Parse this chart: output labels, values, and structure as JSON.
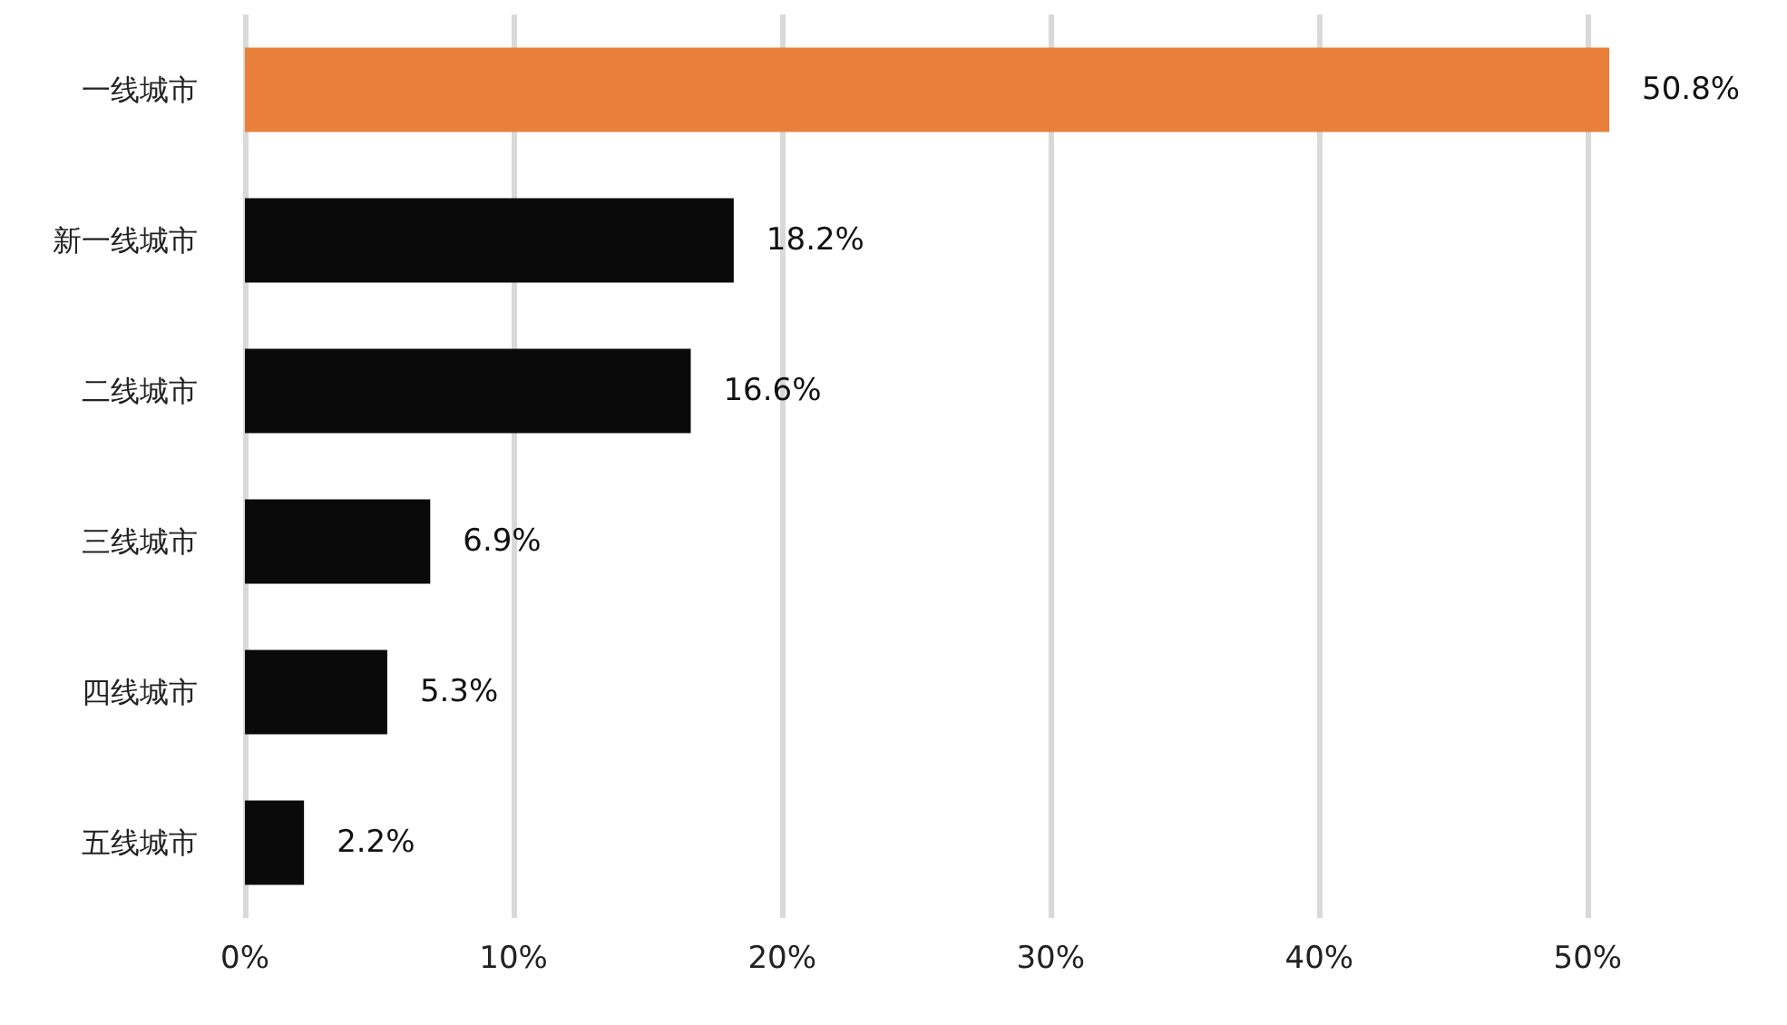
{
  "chart_data": {
    "type": "bar",
    "orientation": "horizontal",
    "categories": [
      "一线城市",
      "新一线城市",
      "二线城市",
      "三线城市",
      "四线城市",
      "五线城市"
    ],
    "values": [
      50.8,
      18.2,
      16.6,
      6.9,
      5.3,
      2.2
    ],
    "colors": [
      "#e8803a",
      "#0a0a0a",
      "#0a0a0a",
      "#0a0a0a",
      "#0a0a0a",
      "#0a0a0a"
    ],
    "value_labels": [
      "50.8%",
      "18.2%",
      "16.6%",
      "6.9%",
      "5.3%",
      "2.2%"
    ],
    "xlim": [
      0,
      51
    ],
    "xticks": [
      {
        "value": 0,
        "label": "0%"
      },
      {
        "value": 10,
        "label": "10%"
      },
      {
        "value": 20,
        "label": "20%"
      },
      {
        "value": 30,
        "label": "30%"
      },
      {
        "value": 40,
        "label": "40%"
      },
      {
        "value": 50,
        "label": "50%"
      }
    ],
    "grid": "x"
  }
}
